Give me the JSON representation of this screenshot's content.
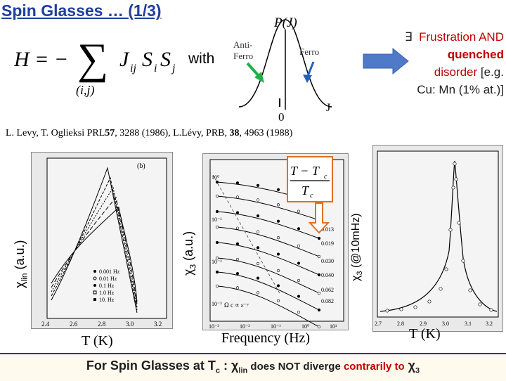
{
  "title": "Spin Glasses … (1/3)",
  "hamiltonian": {
    "lhs": "H = −",
    "sum_index": "(i,j)",
    "term": "J",
    "term_sub": "ij",
    "spin1": "S",
    "spin1_sub": "i",
    "spin2": "S",
    "spin2_sub": "j"
  },
  "with_label": "with",
  "pj": {
    "label": "P(J)",
    "anti_ferro": [
      "Anti-",
      "Ferro"
    ],
    "ferro": "Ferro",
    "zero": "0",
    "j_axis": "J"
  },
  "frustration": {
    "exists": "∃",
    "line1": "Frustration AND",
    "line2": "quenched",
    "line3a": "disorder",
    "line3b": "[e.g.",
    "line4": "Cu: Mn (1% at.)]"
  },
  "citation": {
    "part1": "L. Levy, T. Oglieksi PRL",
    "vol1": "57",
    "part2": ", 3288 (1986), L.Lévy, PRB, ",
    "vol2": "38",
    "part3": ", 4963 (1988)"
  },
  "panel1": {
    "ylabel_sym": "χ",
    "ylabel_sub": "lin",
    "ylabel_unit": " (a.u.)",
    "xlabel": "T (K)",
    "xticks": [
      "2.4",
      "2.6",
      "2.8",
      "3.0",
      "3.2"
    ],
    "panel_tag": "(b)",
    "legend": [
      "0.001 Hz",
      "0.01 Hz",
      "0.1 Hz",
      "1.0 Hz",
      "10. Hz"
    ]
  },
  "panel2": {
    "ylabel_sym": "χ",
    "ylabel_sub": "3",
    "ylabel_unit": " (a.u.)",
    "xlabel": "Frequency (Hz)",
    "xticks": [
      "10⁻³",
      "10⁻²",
      "10⁻¹",
      "10⁰",
      "10¹"
    ],
    "yticks": [
      "10⁰",
      "10⁻¹",
      "10⁻²",
      "10⁻³"
    ],
    "reduced_temp_values": [
      "0.013",
      "0.019",
      "0.030",
      "0.040",
      "0.062",
      "0.082"
    ],
    "annotation": "Ω c ∝ ε⁻ʸ",
    "formula_num": "T − T",
    "formula_num_sub": "c",
    "formula_den": "T",
    "formula_den_sub": "c"
  },
  "panel3": {
    "ylabel_sym": "χ",
    "ylabel_sub": "3",
    "ylabel_unit": " (@10mHz)",
    "xlabel": "T (K)",
    "xticks": [
      "2.7",
      "2.8",
      "2.9",
      "3.0",
      "3.1",
      "3.2"
    ]
  },
  "footer": {
    "part1": "For Spin Glasses at T",
    "sub_c": "c",
    "part2": " : χ",
    "sub_lin": "lin",
    "part3": " does NOT diverge ",
    "part4": "contrarily to",
    "part5": " χ",
    "sub_3": "3"
  },
  "colors": {
    "title": "#1f3f9f",
    "red": "#c00000",
    "arrow_green": "#1fb04a",
    "arrow_blue": "#2060c0",
    "arrow_right": "#4e7ac7",
    "orange_box": "#e07020"
  }
}
